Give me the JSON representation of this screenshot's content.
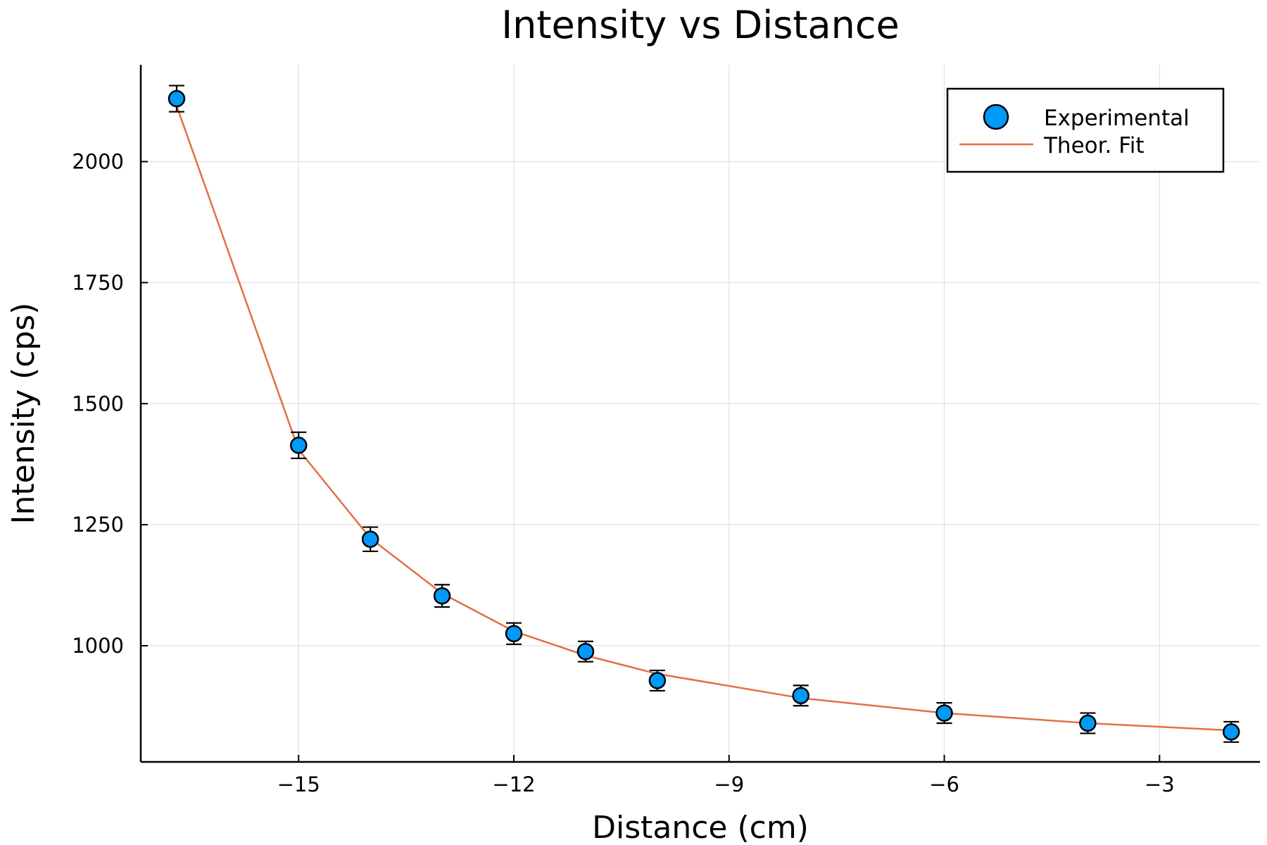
{
  "chart_data": {
    "type": "scatter",
    "title": "Intensity vs Distance",
    "xlabel": "Distance (cm)",
    "ylabel": "Intensity (cps)",
    "xlim": [
      -17.2,
      -1.6
    ],
    "ylim": [
      760,
      2200
    ],
    "xticks": [
      -15,
      -12,
      -9,
      -6,
      -3
    ],
    "xtick_labels": [
      "−15",
      "−12",
      "−9",
      "−6",
      "−3"
    ],
    "yticks": [
      1000,
      1250,
      1500,
      1750,
      2000
    ],
    "ytick_labels": [
      "1000",
      "1250",
      "1500",
      "1750",
      "2000"
    ],
    "grid": true,
    "legend_position": "top-right",
    "series": [
      {
        "name": "Experimental",
        "type": "scatter",
        "color": "#009af9",
        "x": [
          -16.7,
          -15,
          -14,
          -13,
          -12,
          -11,
          -10,
          -8,
          -6,
          -4,
          -2
        ],
        "y": [
          2130,
          1414,
          1220,
          1103,
          1025,
          988,
          928,
          897,
          861,
          840,
          822
        ],
        "error": [
          27,
          27,
          25,
          23,
          22,
          21,
          21,
          21,
          21,
          21,
          21
        ]
      },
      {
        "name": "Theor. Fit",
        "type": "line",
        "color": "#e26f46",
        "x": [
          -16.7,
          -15,
          -14,
          -13,
          -12,
          -11,
          -10,
          -8,
          -6,
          -4,
          -2
        ],
        "y": [
          2115,
          1405,
          1222,
          1108,
          1030,
          980,
          942,
          892,
          861,
          840,
          825
        ]
      }
    ]
  }
}
